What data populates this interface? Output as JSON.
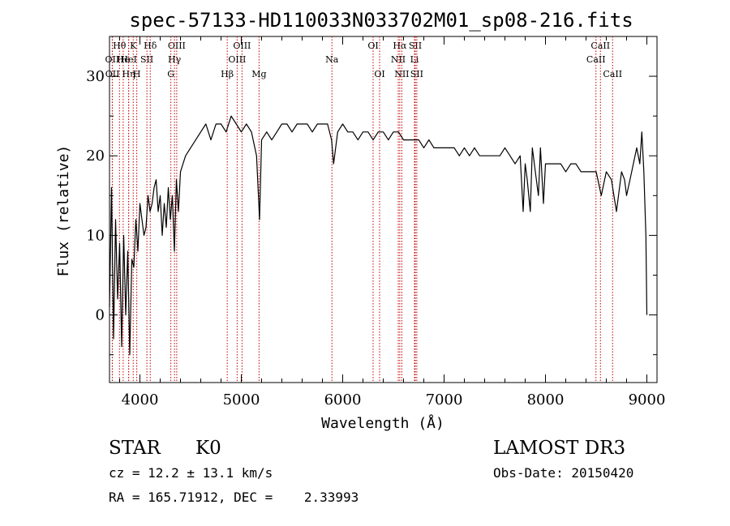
{
  "chart_data": {
    "type": "line",
    "title": "spec-57133-HD110033N033702M01_sp08-216.fits",
    "xlabel": "Wavelength (Å)",
    "ylabel": "Flux (relative)",
    "xlim": [
      3700,
      9100
    ],
    "ylim": [
      -8.5,
      35
    ],
    "x_ticks": [
      4000,
      5000,
      6000,
      7000,
      8000,
      9000
    ],
    "y_ticks": [
      0,
      10,
      20,
      30
    ],
    "x_tick_labels": [
      "4000",
      "5000",
      "6000",
      "7000",
      "8000",
      "9000"
    ],
    "y_tick_labels": [
      "0",
      "10",
      "20",
      "30"
    ],
    "grid": false,
    "series": [
      {
        "x": [
          3700,
          3720,
          3740,
          3760,
          3780,
          3800,
          3820,
          3840,
          3860,
          3880,
          3900,
          3920,
          3940,
          3960,
          3980,
          4000,
          4020,
          4040,
          4060,
          4080,
          4100,
          4120,
          4140,
          4160,
          4180,
          4200,
          4220,
          4240,
          4260,
          4280,
          4300,
          4320,
          4340,
          4360,
          4380,
          4400,
          4450,
          4500,
          4550,
          4600,
          4650,
          4700,
          4750,
          4800,
          4850,
          4900,
          4950,
          5000,
          5050,
          5100,
          5150,
          5180,
          5200,
          5250,
          5300,
          5350,
          5400,
          5450,
          5500,
          5550,
          5600,
          5650,
          5700,
          5750,
          5800,
          5850,
          5890,
          5910,
          5950,
          6000,
          6050,
          6100,
          6150,
          6200,
          6250,
          6300,
          6350,
          6400,
          6450,
          6500,
          6550,
          6600,
          6650,
          6700,
          6750,
          6800,
          6850,
          6900,
          6950,
          7000,
          7050,
          7100,
          7150,
          7200,
          7250,
          7300,
          7350,
          7400,
          7450,
          7500,
          7550,
          7600,
          7650,
          7700,
          7750,
          7780,
          7800,
          7820,
          7850,
          7870,
          7900,
          7930,
          7950,
          7980,
          8000,
          8050,
          8100,
          8150,
          8200,
          8250,
          8300,
          8350,
          8400,
          8450,
          8500,
          8550,
          8600,
          8650,
          8700,
          8750,
          8780,
          8800,
          8850,
          8900,
          8930,
          8950,
          8970,
          8990,
          9000
        ],
        "y": [
          1,
          16,
          -3,
          12,
          2,
          9,
          -4,
          10,
          0,
          8,
          -5,
          7,
          6,
          12,
          8,
          14,
          12,
          10,
          11,
          15,
          13,
          14,
          16,
          17,
          13,
          15,
          10,
          14,
          11,
          16,
          12,
          15,
          8,
          17,
          13,
          18,
          20,
          21,
          22,
          23,
          24,
          22,
          24,
          24,
          23,
          25,
          24,
          23,
          24,
          23,
          20,
          12,
          22,
          23,
          22,
          23,
          24,
          24,
          23,
          24,
          24,
          24,
          23,
          24,
          24,
          24,
          22,
          19,
          23,
          24,
          23,
          23,
          22,
          23,
          23,
          22,
          23,
          23,
          22,
          23,
          23,
          22,
          22,
          22,
          22,
          21,
          22,
          21,
          21,
          21,
          21,
          21,
          20,
          21,
          20,
          21,
          20,
          20,
          20,
          20,
          20,
          21,
          20,
          19,
          20,
          13,
          19,
          17,
          13,
          21,
          18,
          15,
          21,
          14,
          19,
          19,
          19,
          19,
          18,
          19,
          19,
          18,
          18,
          18,
          18,
          15,
          18,
          17,
          13,
          18,
          17,
          15,
          18,
          21,
          19,
          23,
          18,
          10,
          0
        ]
      }
    ],
    "line_markers": [
      {
        "label": "Hθ",
        "x": 3798,
        "row": 0
      },
      {
        "label": "OII",
        "x": 3727,
        "row": 1
      },
      {
        "label": "OII",
        "x": 3729,
        "row": 2
      },
      {
        "label": "He",
        "x": 3835,
        "row": 1
      },
      {
        "label": "Hη",
        "x": 3889,
        "row": 2
      },
      {
        "label": "K",
        "x": 3934,
        "row": 0
      },
      {
        "label": "HeI",
        "x": 3889,
        "row": 1
      },
      {
        "label": "H",
        "x": 3969,
        "row": 2
      },
      {
        "label": "SII",
        "x": 4069,
        "row": 1
      },
      {
        "label": "Hδ",
        "x": 4102,
        "row": 0
      },
      {
        "label": "OIII",
        "x": 4363,
        "row": 0
      },
      {
        "label": "Hγ",
        "x": 4341,
        "row": 1
      },
      {
        "label": "G",
        "x": 4305,
        "row": 2
      },
      {
        "label": "Hβ",
        "x": 4861,
        "row": 2
      },
      {
        "label": "OIII",
        "x": 5007,
        "row": 0
      },
      {
        "label": "OIII",
        "x": 4959,
        "row": 1
      },
      {
        "label": "Mg",
        "x": 5175,
        "row": 2
      },
      {
        "label": "Na",
        "x": 5894,
        "row": 1
      },
      {
        "label": "OI",
        "x": 6300,
        "row": 0
      },
      {
        "label": "OI",
        "x": 6364,
        "row": 2
      },
      {
        "label": "Hα",
        "x": 6563,
        "row": 0
      },
      {
        "label": "NII",
        "x": 6548,
        "row": 1
      },
      {
        "label": "NII",
        "x": 6583,
        "row": 2
      },
      {
        "label": "SII",
        "x": 6716,
        "row": 0
      },
      {
        "label": "Li",
        "x": 6708,
        "row": 1
      },
      {
        "label": "SII",
        "x": 6731,
        "row": 2
      },
      {
        "label": "CaII",
        "x": 8542,
        "row": 0
      },
      {
        "label": "CaII",
        "x": 8498,
        "row": 1
      },
      {
        "label": "CaII",
        "x": 8662,
        "row": 2
      }
    ]
  },
  "info": {
    "class": "STAR",
    "subclass": "K0",
    "survey": "LAMOST DR3",
    "redshift": "cz = 12.2 ± 13.1 km/s",
    "obs_date": "Obs-Date: 20150420",
    "coords": "RA = 165.71912, DEC =    2.33993"
  },
  "colors": {
    "line_marker": "#c00000",
    "spectrum": "#000000"
  }
}
